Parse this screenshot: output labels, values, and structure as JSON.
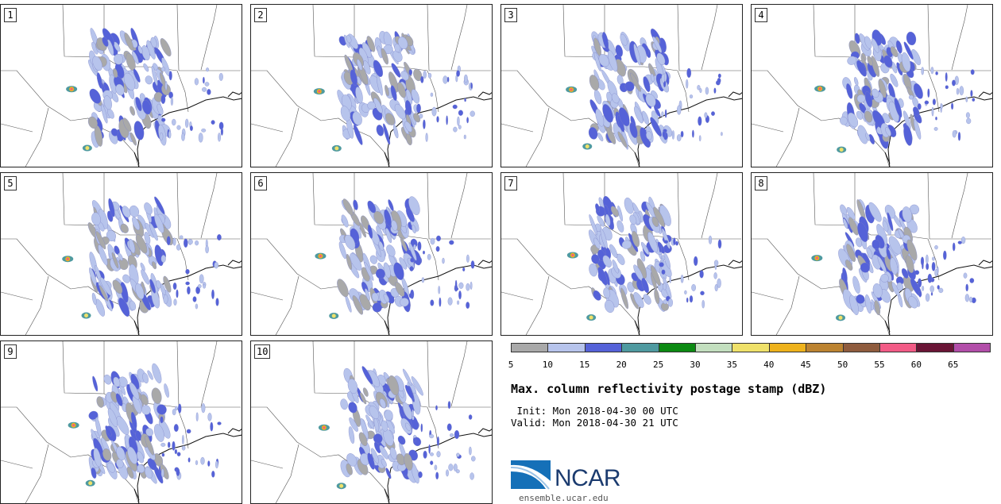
{
  "panels": [
    {
      "label": "1"
    },
    {
      "label": "2"
    },
    {
      "label": "3"
    },
    {
      "label": "4"
    },
    {
      "label": "5"
    },
    {
      "label": "6"
    },
    {
      "label": "7"
    },
    {
      "label": "8"
    },
    {
      "label": "9"
    },
    {
      "label": "10"
    }
  ],
  "colorbar": {
    "ticks": [
      "5",
      "10",
      "15",
      "20",
      "25",
      "30",
      "35",
      "40",
      "45",
      "50",
      "55",
      "60",
      "65"
    ],
    "colors": [
      "#a9a9a9",
      "#b7c4ec",
      "#5562d8",
      "#4f9aa0",
      "#0c8a12",
      "#c3dfbf",
      "#efe16a",
      "#eeb21c",
      "#bc8331",
      "#8f5c3e",
      "#f25b86",
      "#6a1536",
      "#b24ea9"
    ]
  },
  "title": "Max. column reflectivity postage stamp (dBZ)",
  "init": " Init: Mon 2018-04-30 00 UTC",
  "valid": "Valid: Mon 2018-04-30 21 UTC",
  "logo": {
    "text": "NCAR",
    "url": "ensemble.ucar.edu"
  }
}
